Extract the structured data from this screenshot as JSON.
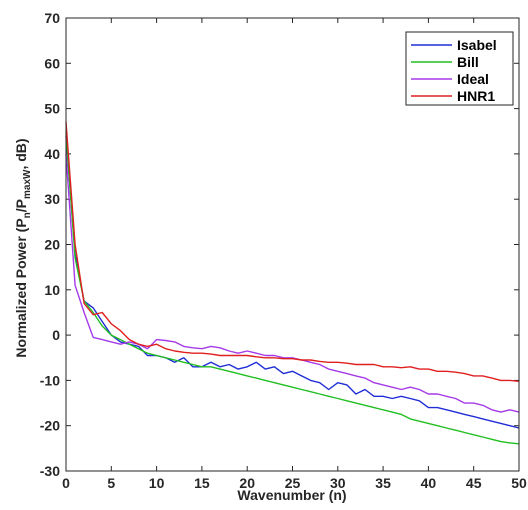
{
  "chart_data": {
    "type": "line",
    "title": "",
    "xlabel": "Wavenumber (n)",
    "ylabel": {
      "main": "Normalized Power (P",
      "sub1": "n",
      "mid": "/P",
      "sub2": "maxW",
      "end": ", dB)"
    },
    "xlim": [
      0,
      50
    ],
    "ylim": [
      -30,
      70
    ],
    "xticks": [
      0,
      5,
      10,
      15,
      20,
      25,
      30,
      35,
      40,
      45,
      50
    ],
    "yticks": [
      -30,
      -20,
      -10,
      0,
      10,
      20,
      30,
      40,
      50,
      60,
      70
    ],
    "grid": false,
    "legend_position": "top-right",
    "series": [
      {
        "name": "Isabel",
        "color": "#1f2ed6",
        "x": [
          0,
          1,
          2,
          3,
          4,
          5,
          6,
          7,
          8,
          9,
          10,
          11,
          12,
          13,
          14,
          15,
          16,
          17,
          18,
          19,
          20,
          21,
          22,
          23,
          24,
          25,
          26,
          27,
          28,
          29,
          30,
          31,
          32,
          33,
          34,
          35,
          36,
          37,
          38,
          39,
          40,
          41,
          42,
          43,
          44,
          45,
          46,
          47,
          48,
          49,
          50
        ],
        "y": [
          44,
          18,
          7.5,
          6,
          3,
          0,
          -1.5,
          -2,
          -2.5,
          -4.5,
          -4.5,
          -5,
          -6,
          -5,
          -7,
          -7,
          -6,
          -7,
          -6.5,
          -7.5,
          -7,
          -6,
          -7.5,
          -7,
          -8.5,
          -8,
          -9,
          -10,
          -10.5,
          -12,
          -10.5,
          -11,
          -13,
          -12,
          -13.5,
          -13.5,
          -14,
          -13.5,
          -14,
          -14.5,
          -16,
          -16,
          -16.5,
          -17,
          -17.5,
          -18,
          -18.5,
          -19,
          -19.5,
          -20,
          -20.5
        ]
      },
      {
        "name": "Bill",
        "color": "#22bf22",
        "x": [
          0,
          1,
          2,
          3,
          4,
          5,
          6,
          7,
          8,
          9,
          10,
          11,
          12,
          13,
          14,
          15,
          16,
          17,
          18,
          19,
          20,
          21,
          22,
          23,
          24,
          25,
          26,
          27,
          28,
          29,
          30,
          31,
          32,
          33,
          34,
          35,
          36,
          37,
          38,
          39,
          40,
          41,
          42,
          43,
          44,
          45,
          46,
          47,
          48,
          49,
          50
        ],
        "y": [
          45,
          17,
          7.5,
          5,
          2,
          0,
          -1,
          -2,
          -3,
          -4,
          -4.5,
          -5,
          -5.5,
          -6,
          -6.5,
          -7,
          -7,
          -7.5,
          -8,
          -8.5,
          -9,
          -9.5,
          -10,
          -10.5,
          -11,
          -11.5,
          -12,
          -12.5,
          -13,
          -13.5,
          -14,
          -14.5,
          -15,
          -15.5,
          -16,
          -16.5,
          -17,
          -17.5,
          -18.5,
          -19,
          -19.5,
          -20,
          -20.5,
          -21,
          -21.5,
          -22,
          -22.5,
          -23,
          -23.5,
          -23.8,
          -24
        ]
      },
      {
        "name": "Ideal",
        "color": "#a63ae8",
        "x": [
          0,
          1,
          2,
          3,
          4,
          5,
          6,
          7,
          8,
          9,
          10,
          11,
          12,
          13,
          14,
          15,
          16,
          17,
          18,
          19,
          20,
          21,
          22,
          23,
          24,
          25,
          26,
          27,
          28,
          29,
          30,
          31,
          32,
          33,
          34,
          35,
          36,
          37,
          38,
          39,
          40,
          41,
          42,
          43,
          44,
          45,
          46,
          47,
          48,
          49,
          50
        ],
        "y": [
          40,
          11,
          5,
          -0.5,
          -1,
          -1.5,
          -2,
          -1.5,
          -2,
          -3,
          -1,
          -1.2,
          -1.5,
          -2.5,
          -2.8,
          -3,
          -2.5,
          -2.8,
          -3.5,
          -4,
          -3.5,
          -4,
          -4.5,
          -4.5,
          -5,
          -5,
          -5.5,
          -6,
          -6.5,
          -7.5,
          -8,
          -8.5,
          -9,
          -9.5,
          -10.5,
          -11,
          -11.5,
          -12,
          -11.5,
          -12,
          -13,
          -13,
          -13.5,
          -14,
          -15,
          -15,
          -15.5,
          -16.5,
          -17,
          -16.5,
          -17
        ]
      },
      {
        "name": "HNR1",
        "color": "#e02020",
        "x": [
          0,
          1,
          2,
          3,
          4,
          5,
          6,
          7,
          8,
          9,
          10,
          11,
          12,
          13,
          14,
          15,
          16,
          17,
          18,
          19,
          20,
          21,
          22,
          23,
          24,
          25,
          26,
          27,
          28,
          29,
          30,
          31,
          32,
          33,
          34,
          35,
          36,
          37,
          38,
          39,
          40,
          41,
          42,
          43,
          44,
          45,
          46,
          47,
          48,
          49,
          50
        ],
        "y": [
          47,
          20,
          7,
          4.5,
          5,
          2.5,
          1,
          -1,
          -2,
          -2.5,
          -2,
          -3,
          -3.5,
          -3.8,
          -4,
          -4,
          -4.2,
          -4.5,
          -4.5,
          -4.5,
          -4.5,
          -4.8,
          -5,
          -5,
          -5.2,
          -5.2,
          -5.5,
          -5.5,
          -5.8,
          -6,
          -6,
          -6.2,
          -6.5,
          -6.5,
          -6.5,
          -7,
          -7,
          -7.2,
          -7,
          -7.5,
          -7.5,
          -8,
          -8,
          -8.2,
          -8.5,
          -9,
          -9,
          -9.5,
          -10,
          -10,
          -10.2
        ]
      }
    ]
  }
}
